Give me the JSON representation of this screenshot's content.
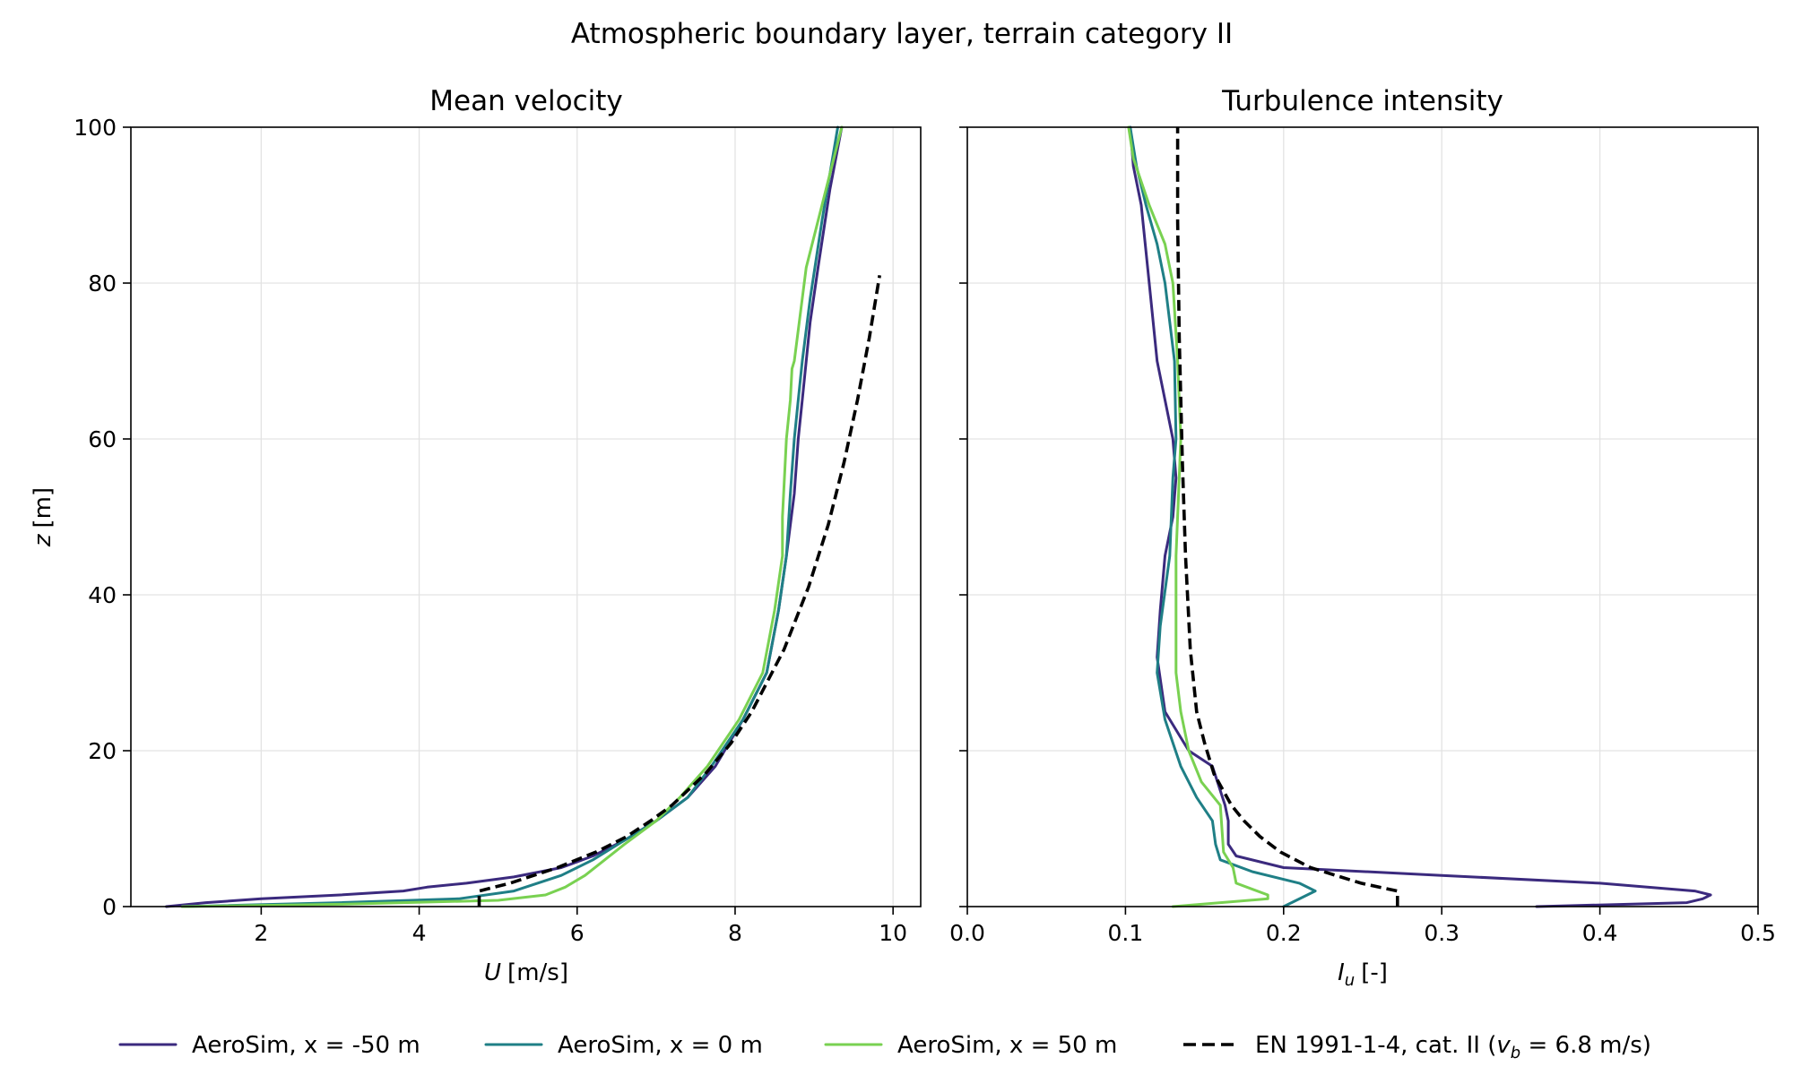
{
  "figure": {
    "title": "Atmospheric boundary layer, terrain category II",
    "legend_position": "bottom-center"
  },
  "chart_data": [
    {
      "type": "line",
      "title": "Mean velocity",
      "xlabel_symbol": "U",
      "xlabel_unit": "[m/s]",
      "ylabel_symbol": "z",
      "ylabel_unit": "[m]",
      "xlim": [
        0.35,
        10.35
      ],
      "ylim": [
        0,
        100
      ],
      "xticks": [
        2,
        4,
        6,
        8,
        10
      ],
      "yticks": [
        0,
        20,
        40,
        60,
        80,
        100
      ],
      "grid": true,
      "series": [
        {
          "name": "AeroSim, x = -50 m",
          "color": "#3b2a7e",
          "style": "solid",
          "x": [
            0.8,
            1.3,
            2.0,
            3.0,
            3.8,
            4.1,
            4.6,
            5.2,
            5.8,
            6.2,
            6.6,
            7.0,
            7.4,
            7.75,
            8.1,
            8.4,
            8.55,
            8.65,
            8.75,
            8.8,
            8.85,
            8.9,
            8.95,
            9.05,
            9.2,
            9.35
          ],
          "z": [
            0,
            0.5,
            1,
            1.5,
            2,
            2.5,
            3,
            3.8,
            5,
            6.5,
            8.5,
            11,
            14,
            18,
            24,
            30,
            38,
            45,
            53,
            60,
            65,
            70,
            75,
            82,
            92,
            100
          ]
        },
        {
          "name": "AeroSim, x = 0 m",
          "color": "#1f7f86",
          "style": "solid",
          "x": [
            1.0,
            3.0,
            4.5,
            5.2,
            5.8,
            6.2,
            6.6,
            7.0,
            7.4,
            7.7,
            8.1,
            8.4,
            8.55,
            8.65,
            8.7,
            8.75,
            8.8,
            8.85,
            8.95,
            9.1,
            9.3
          ],
          "z": [
            0,
            0.5,
            1,
            2,
            4,
            6,
            8.5,
            11,
            14,
            18,
            24,
            30,
            38,
            45,
            53,
            60,
            65,
            70,
            78,
            88,
            100
          ]
        },
        {
          "name": "AeroSim, x = 50 m",
          "color": "#79d151",
          "style": "solid",
          "x": [
            1.0,
            3.0,
            5.0,
            5.6,
            5.85,
            6.1,
            6.6,
            7.0,
            7.3,
            7.65,
            8.05,
            8.35,
            8.5,
            8.6,
            8.6,
            8.65,
            8.7,
            8.72,
            8.75,
            8.9,
            9.1,
            9.35
          ],
          "z": [
            0,
            0.3,
            0.8,
            1.5,
            2.5,
            4,
            8,
            11,
            14,
            18,
            24,
            30,
            38,
            45,
            50,
            60,
            65,
            69,
            70,
            82,
            90,
            100
          ]
        },
        {
          "name": "EN 1991-1-4, cat. II (v_b = 6.8 m/s)",
          "color": "#000000",
          "style": "dashed",
          "x": [
            4.76,
            4.76,
            5.15,
            5.75,
            6.24,
            6.63,
            6.93,
            7.2,
            7.62,
            7.95,
            8.21,
            8.62,
            8.93,
            9.18,
            9.38,
            9.55,
            9.7,
            9.83
          ],
          "z": [
            0,
            2,
            3,
            5,
            7,
            9,
            11,
            13,
            17,
            21,
            25,
            33,
            41,
            49,
            57,
            65,
            73,
            81
          ]
        }
      ]
    },
    {
      "type": "line",
      "title": "Turbulence intensity",
      "xlabel_symbol": "I",
      "xlabel_subscript": "u",
      "xlabel_unit": "[-]",
      "xlim": [
        0.0,
        0.5
      ],
      "ylim": [
        0,
        100
      ],
      "xticks": [
        "0.0",
        "0.1",
        "0.2",
        "0.3",
        "0.4",
        "0.5"
      ],
      "yticks": [
        0,
        20,
        40,
        60,
        80,
        100
      ],
      "grid": true,
      "series": [
        {
          "name": "AeroSim, x = -50 m",
          "color": "#3b2a7e",
          "style": "solid",
          "x": [
            0.36,
            0.455,
            0.465,
            0.47,
            0.46,
            0.4,
            0.3,
            0.2,
            0.17,
            0.165,
            0.165,
            0.163,
            0.155,
            0.14,
            0.125,
            0.12,
            0.122,
            0.125,
            0.13,
            0.132,
            0.13,
            0.125,
            0.12,
            0.115,
            0.11,
            0.105,
            0.103
          ],
          "z": [
            0,
            0.5,
            1,
            1.5,
            2,
            3,
            4,
            5,
            6.5,
            8,
            11,
            13,
            18,
            20,
            25,
            32,
            38,
            45,
            50,
            55,
            60,
            65,
            70,
            80,
            90,
            95,
            100
          ]
        },
        {
          "name": "AeroSim, x = 0 m",
          "color": "#1f7f86",
          "style": "solid",
          "x": [
            0.2,
            0.22,
            0.21,
            0.18,
            0.16,
            0.157,
            0.155,
            0.145,
            0.135,
            0.125,
            0.12,
            0.122,
            0.128,
            0.13,
            0.132,
            0.131,
            0.125,
            0.12,
            0.113,
            0.107,
            0.103
          ],
          "z": [
            0,
            2,
            3,
            4.5,
            6,
            8,
            11,
            14,
            18,
            24,
            30,
            36,
            45,
            55,
            60,
            70,
            80,
            85,
            90,
            95,
            100
          ]
        },
        {
          "name": "AeroSim, x = 50 m",
          "color": "#79d151",
          "style": "solid",
          "x": [
            0.13,
            0.19,
            0.19,
            0.17,
            0.168,
            0.162,
            0.16,
            0.148,
            0.14,
            0.135,
            0.132,
            0.132,
            0.135,
            0.133,
            0.13,
            0.125,
            0.115,
            0.105,
            0.102
          ],
          "z": [
            0,
            1,
            1.5,
            3,
            5,
            7,
            13,
            16,
            20,
            25,
            30,
            45,
            60,
            70,
            80,
            85,
            90,
            96,
            100
          ]
        },
        {
          "name": "EN 1991-1-4, cat. II (v_b = 6.8 m/s)",
          "color": "#000000",
          "style": "dashed",
          "x": [
            0.272,
            0.272,
            0.249,
            0.217,
            0.198,
            0.185,
            0.175,
            0.167,
            0.156,
            0.15,
            0.145,
            0.141,
            0.138,
            0.136,
            0.134,
            0.133,
            0.133
          ],
          "z": [
            0,
            2,
            3,
            5,
            7,
            9,
            11,
            13,
            17,
            21,
            25,
            33,
            45,
            57,
            73,
            88,
            100
          ]
        }
      ]
    }
  ],
  "legend": {
    "items": [
      {
        "text": "AeroSim, x = -50 m",
        "color": "#3b2a7e",
        "style": "solid"
      },
      {
        "text": "AeroSim, x = 0 m",
        "color": "#1f7f86",
        "style": "solid"
      },
      {
        "text": "AeroSim, x = 50 m",
        "color": "#79d151",
        "style": "solid"
      },
      {
        "text_before": "EN 1991-1-4, cat. II (",
        "symbol": "v",
        "subscript": "b",
        "text_after": " = 6.8 m/s)",
        "color": "#000000",
        "style": "dashed"
      }
    ]
  }
}
